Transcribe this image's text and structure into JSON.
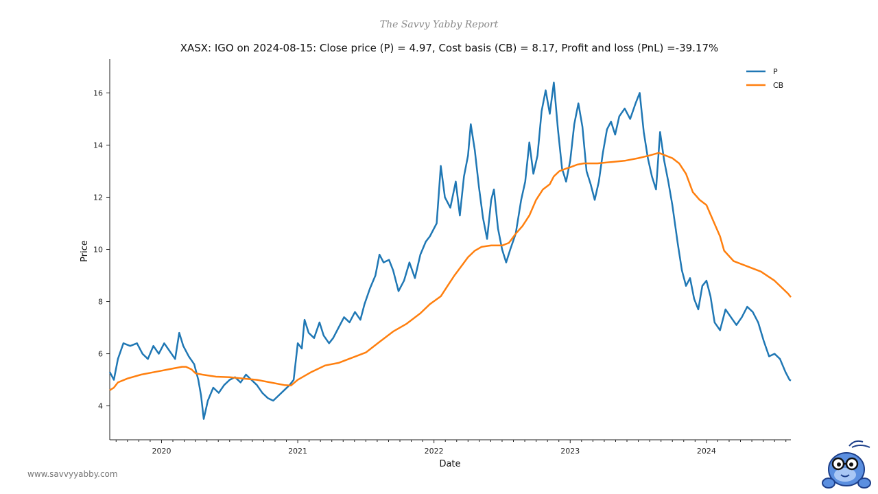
{
  "branding": {
    "report_name": "The Savvy Yabby Report",
    "website": "www.savvyyabby.com",
    "logo_icon": "yabby-mascot-icon"
  },
  "colors": {
    "price": "#1f77b4",
    "cost_basis": "#ff7f0e"
  },
  "chart_data": {
    "type": "line",
    "title": "XASX: IGO on 2024-08-15: Close price (P) = 4.97, Cost basis (CB) = 8.17, Profit and loss (PnL) =-39.17%",
    "xlabel": "Date",
    "ylabel": "Price",
    "xlim": [
      2019.62,
      2024.62
    ],
    "ylim": [
      2.7,
      17.3
    ],
    "grid": false,
    "legend_position": "top-right",
    "x_ticks": [
      {
        "value": 2020,
        "label": "2020"
      },
      {
        "value": 2021,
        "label": "2021"
      },
      {
        "value": 2022,
        "label": "2022"
      },
      {
        "value": 2023,
        "label": "2023"
      },
      {
        "value": 2024,
        "label": "2024"
      }
    ],
    "y_ticks": [
      {
        "value": 4,
        "label": "4"
      },
      {
        "value": 6,
        "label": "6"
      },
      {
        "value": 8,
        "label": "8"
      },
      {
        "value": 10,
        "label": "10"
      },
      {
        "value": 12,
        "label": "12"
      },
      {
        "value": 14,
        "label": "14"
      },
      {
        "value": 16,
        "label": "16"
      }
    ],
    "series": [
      {
        "name": "P",
        "color": "#1f77b4",
        "points": [
          [
            2019.62,
            5.3
          ],
          [
            2019.65,
            5.0
          ],
          [
            2019.68,
            5.8
          ],
          [
            2019.72,
            6.4
          ],
          [
            2019.77,
            6.3
          ],
          [
            2019.82,
            6.4
          ],
          [
            2019.86,
            6.0
          ],
          [
            2019.9,
            5.8
          ],
          [
            2019.94,
            6.3
          ],
          [
            2019.98,
            6.0
          ],
          [
            2020.02,
            6.4
          ],
          [
            2020.06,
            6.1
          ],
          [
            2020.1,
            5.8
          ],
          [
            2020.13,
            6.8
          ],
          [
            2020.16,
            6.3
          ],
          [
            2020.2,
            5.9
          ],
          [
            2020.24,
            5.6
          ],
          [
            2020.27,
            5.0
          ],
          [
            2020.29,
            4.4
          ],
          [
            2020.31,
            3.5
          ],
          [
            2020.34,
            4.2
          ],
          [
            2020.38,
            4.7
          ],
          [
            2020.42,
            4.5
          ],
          [
            2020.46,
            4.8
          ],
          [
            2020.5,
            5.0
          ],
          [
            2020.54,
            5.1
          ],
          [
            2020.58,
            4.9
          ],
          [
            2020.62,
            5.2
          ],
          [
            2020.66,
            5.0
          ],
          [
            2020.7,
            4.8
          ],
          [
            2020.74,
            4.5
          ],
          [
            2020.78,
            4.3
          ],
          [
            2020.82,
            4.2
          ],
          [
            2020.86,
            4.4
          ],
          [
            2020.9,
            4.6
          ],
          [
            2020.94,
            4.8
          ],
          [
            2020.97,
            5.0
          ],
          [
            2021.0,
            6.4
          ],
          [
            2021.03,
            6.2
          ],
          [
            2021.05,
            7.3
          ],
          [
            2021.08,
            6.8
          ],
          [
            2021.12,
            6.6
          ],
          [
            2021.16,
            7.2
          ],
          [
            2021.19,
            6.7
          ],
          [
            2021.23,
            6.4
          ],
          [
            2021.26,
            6.6
          ],
          [
            2021.3,
            7.0
          ],
          [
            2021.34,
            7.4
          ],
          [
            2021.38,
            7.2
          ],
          [
            2021.42,
            7.6
          ],
          [
            2021.46,
            7.3
          ],
          [
            2021.49,
            7.9
          ],
          [
            2021.53,
            8.5
          ],
          [
            2021.57,
            9.0
          ],
          [
            2021.6,
            9.8
          ],
          [
            2021.63,
            9.5
          ],
          [
            2021.67,
            9.6
          ],
          [
            2021.7,
            9.2
          ],
          [
            2021.74,
            8.4
          ],
          [
            2021.78,
            8.8
          ],
          [
            2021.82,
            9.5
          ],
          [
            2021.86,
            8.9
          ],
          [
            2021.9,
            9.8
          ],
          [
            2021.94,
            10.3
          ],
          [
            2021.97,
            10.5
          ],
          [
            2022.02,
            11.0
          ],
          [
            2022.05,
            13.2
          ],
          [
            2022.08,
            12.0
          ],
          [
            2022.12,
            11.6
          ],
          [
            2022.16,
            12.6
          ],
          [
            2022.19,
            11.3
          ],
          [
            2022.22,
            12.8
          ],
          [
            2022.25,
            13.6
          ],
          [
            2022.27,
            14.8
          ],
          [
            2022.3,
            13.8
          ],
          [
            2022.33,
            12.4
          ],
          [
            2022.36,
            11.2
          ],
          [
            2022.39,
            10.4
          ],
          [
            2022.42,
            11.9
          ],
          [
            2022.44,
            12.3
          ],
          [
            2022.47,
            10.8
          ],
          [
            2022.5,
            10.0
          ],
          [
            2022.53,
            9.5
          ],
          [
            2022.56,
            10.0
          ],
          [
            2022.6,
            10.6
          ],
          [
            2022.64,
            11.9
          ],
          [
            2022.67,
            12.6
          ],
          [
            2022.7,
            14.1
          ],
          [
            2022.73,
            12.9
          ],
          [
            2022.76,
            13.6
          ],
          [
            2022.79,
            15.3
          ],
          [
            2022.82,
            16.1
          ],
          [
            2022.85,
            15.2
          ],
          [
            2022.88,
            16.4
          ],
          [
            2022.91,
            14.6
          ],
          [
            2022.94,
            13.1
          ],
          [
            2022.97,
            12.6
          ],
          [
            2023.0,
            13.4
          ],
          [
            2023.03,
            14.8
          ],
          [
            2023.06,
            15.6
          ],
          [
            2023.09,
            14.7
          ],
          [
            2023.12,
            13.0
          ],
          [
            2023.15,
            12.5
          ],
          [
            2023.18,
            11.9
          ],
          [
            2023.21,
            12.6
          ],
          [
            2023.24,
            13.7
          ],
          [
            2023.27,
            14.6
          ],
          [
            2023.3,
            14.9
          ],
          [
            2023.33,
            14.4
          ],
          [
            2023.36,
            15.1
          ],
          [
            2023.4,
            15.4
          ],
          [
            2023.44,
            15.0
          ],
          [
            2023.48,
            15.6
          ],
          [
            2023.51,
            16.0
          ],
          [
            2023.54,
            14.5
          ],
          [
            2023.57,
            13.5
          ],
          [
            2023.6,
            12.8
          ],
          [
            2023.63,
            12.3
          ],
          [
            2023.66,
            14.5
          ],
          [
            2023.69,
            13.4
          ],
          [
            2023.72,
            12.6
          ],
          [
            2023.75,
            11.7
          ],
          [
            2023.79,
            10.2
          ],
          [
            2023.82,
            9.2
          ],
          [
            2023.85,
            8.6
          ],
          [
            2023.88,
            8.9
          ],
          [
            2023.91,
            8.1
          ],
          [
            2023.94,
            7.7
          ],
          [
            2023.97,
            8.6
          ],
          [
            2024.0,
            8.8
          ],
          [
            2024.03,
            8.2
          ],
          [
            2024.06,
            7.2
          ],
          [
            2024.1,
            6.9
          ],
          [
            2024.14,
            7.7
          ],
          [
            2024.18,
            7.4
          ],
          [
            2024.22,
            7.1
          ],
          [
            2024.26,
            7.4
          ],
          [
            2024.3,
            7.8
          ],
          [
            2024.34,
            7.6
          ],
          [
            2024.38,
            7.2
          ],
          [
            2024.42,
            6.5
          ],
          [
            2024.46,
            5.9
          ],
          [
            2024.5,
            6.0
          ],
          [
            2024.54,
            5.8
          ],
          [
            2024.58,
            5.3
          ],
          [
            2024.61,
            5.0
          ],
          [
            2024.62,
            4.97
          ]
        ]
      },
      {
        "name": "CB",
        "color": "#ff7f0e",
        "points": [
          [
            2019.62,
            4.6
          ],
          [
            2019.65,
            4.7
          ],
          [
            2019.68,
            4.9
          ],
          [
            2019.75,
            5.05
          ],
          [
            2019.85,
            5.2
          ],
          [
            2019.95,
            5.3
          ],
          [
            2020.0,
            5.35
          ],
          [
            2020.05,
            5.4
          ],
          [
            2020.1,
            5.45
          ],
          [
            2020.15,
            5.5
          ],
          [
            2020.18,
            5.5
          ],
          [
            2020.22,
            5.4
          ],
          [
            2020.25,
            5.25
          ],
          [
            2020.3,
            5.2
          ],
          [
            2020.4,
            5.12
          ],
          [
            2020.5,
            5.1
          ],
          [
            2020.6,
            5.05
          ],
          [
            2020.7,
            5.0
          ],
          [
            2020.8,
            4.9
          ],
          [
            2020.9,
            4.8
          ],
          [
            2020.95,
            4.78
          ],
          [
            2021.0,
            5.0
          ],
          [
            2021.1,
            5.3
          ],
          [
            2021.2,
            5.55
          ],
          [
            2021.3,
            5.65
          ],
          [
            2021.4,
            5.85
          ],
          [
            2021.5,
            6.05
          ],
          [
            2021.6,
            6.45
          ],
          [
            2021.7,
            6.85
          ],
          [
            2021.8,
            7.15
          ],
          [
            2021.9,
            7.55
          ],
          [
            2021.97,
            7.9
          ],
          [
            2022.05,
            8.2
          ],
          [
            2022.1,
            8.6
          ],
          [
            2022.15,
            9.0
          ],
          [
            2022.2,
            9.35
          ],
          [
            2022.25,
            9.7
          ],
          [
            2022.3,
            9.95
          ],
          [
            2022.35,
            10.1
          ],
          [
            2022.42,
            10.15
          ],
          [
            2022.5,
            10.15
          ],
          [
            2022.55,
            10.25
          ],
          [
            2022.6,
            10.6
          ],
          [
            2022.65,
            10.9
          ],
          [
            2022.7,
            11.3
          ],
          [
            2022.75,
            11.9
          ],
          [
            2022.8,
            12.3
          ],
          [
            2022.85,
            12.5
          ],
          [
            2022.88,
            12.8
          ],
          [
            2022.92,
            13.0
          ],
          [
            2022.97,
            13.1
          ],
          [
            2023.0,
            13.15
          ],
          [
            2023.05,
            13.25
          ],
          [
            2023.1,
            13.3
          ],
          [
            2023.2,
            13.3
          ],
          [
            2023.3,
            13.35
          ],
          [
            2023.4,
            13.4
          ],
          [
            2023.5,
            13.5
          ],
          [
            2023.58,
            13.6
          ],
          [
            2023.65,
            13.7
          ],
          [
            2023.7,
            13.6
          ],
          [
            2023.75,
            13.5
          ],
          [
            2023.8,
            13.3
          ],
          [
            2023.85,
            12.9
          ],
          [
            2023.9,
            12.2
          ],
          [
            2023.95,
            11.9
          ],
          [
            2024.0,
            11.7
          ],
          [
            2024.05,
            11.1
          ],
          [
            2024.1,
            10.5
          ],
          [
            2024.13,
            9.95
          ],
          [
            2024.2,
            9.55
          ],
          [
            2024.3,
            9.35
          ],
          [
            2024.4,
            9.15
          ],
          [
            2024.5,
            8.8
          ],
          [
            2024.55,
            8.55
          ],
          [
            2024.6,
            8.3
          ],
          [
            2024.62,
            8.17
          ]
        ]
      }
    ]
  }
}
